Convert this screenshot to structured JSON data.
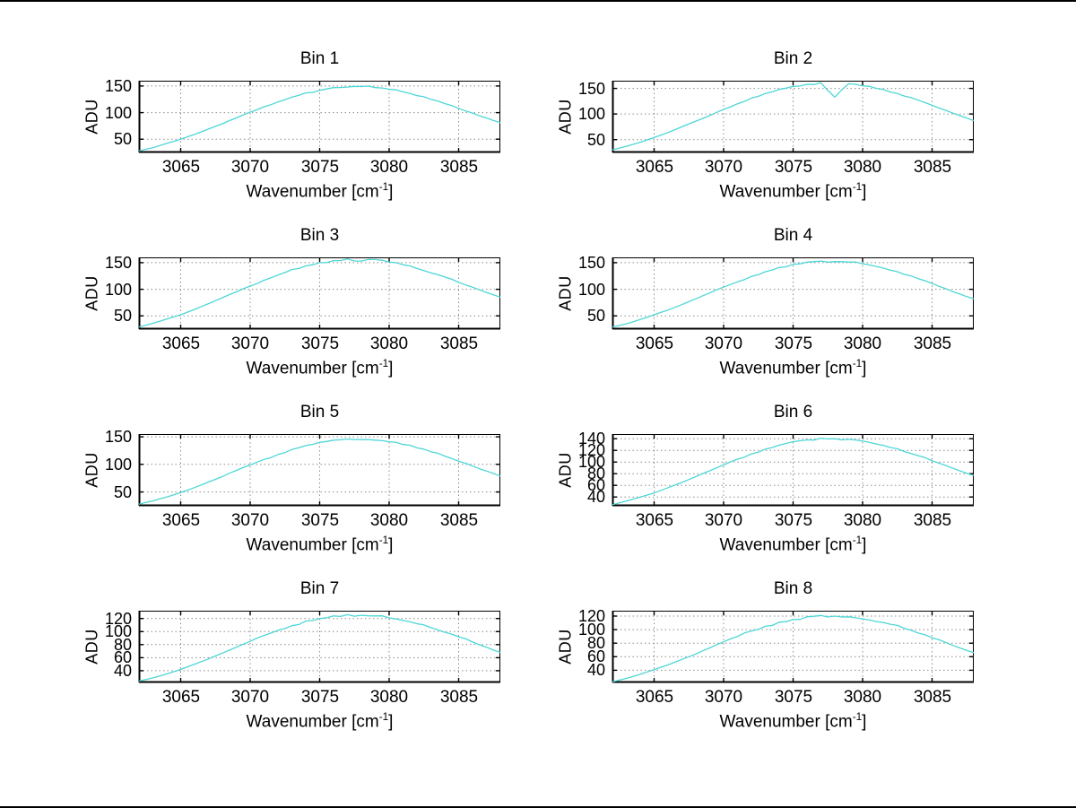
{
  "figure": {
    "background": "#ffffff",
    "border_color": "#000000"
  },
  "labels": {
    "ylabel": "ADU",
    "xlabel_pre": "Wavenumber [cm",
    "xlabel_sup": "-1",
    "xlabel_post": "]"
  },
  "colors": {
    "line": "#4ed6d6",
    "grid": "#8c8c8c",
    "axis": "#000000",
    "text": "#000000"
  },
  "axis": {
    "x_range": [
      3062,
      3088
    ],
    "x_ticks": [
      3065,
      3070,
      3075,
      3080,
      3085
    ],
    "x": [
      3062,
      3063,
      3064,
      3065,
      3066,
      3067,
      3068,
      3069,
      3070,
      3071,
      3072,
      3073,
      3074,
      3075,
      3076,
      3077,
      3078,
      3079,
      3080,
      3081,
      3082,
      3083,
      3084,
      3085,
      3086,
      3087,
      3088
    ],
    "grid": "on",
    "grid_style": "dotted"
  },
  "chart_data": [
    {
      "type": "line",
      "title": "Bin 1",
      "xlabel": "Wavenumber [cm^-1]",
      "ylabel": "ADU",
      "y_ticks": [
        50,
        100,
        150
      ],
      "y_range": [
        25,
        160
      ],
      "values": [
        28,
        34,
        42,
        50,
        59,
        69,
        79,
        90,
        101,
        111,
        120,
        129,
        137,
        142,
        147,
        148,
        149,
        147,
        144,
        139,
        132,
        125,
        117,
        108,
        99,
        90,
        81
      ]
    },
    {
      "type": "line",
      "title": "Bin 2",
      "xlabel": "Wavenumber [cm^-1]",
      "ylabel": "ADU",
      "y_ticks": [
        50,
        100,
        150
      ],
      "y_range": [
        25,
        165
      ],
      "values": [
        30,
        37,
        45,
        54,
        64,
        75,
        86,
        97,
        109,
        120,
        131,
        140,
        148,
        154,
        158,
        161,
        133,
        159,
        155,
        150,
        143,
        135,
        127,
        117,
        107,
        97,
        87
      ]
    },
    {
      "type": "line",
      "title": "Bin 3",
      "xlabel": "Wavenumber [cm^-1]",
      "ylabel": "ADU",
      "y_ticks": [
        50,
        100,
        150
      ],
      "y_range": [
        25,
        160
      ],
      "values": [
        29,
        36,
        44,
        52,
        62,
        73,
        84,
        95,
        106,
        117,
        127,
        137,
        144,
        150,
        154,
        157,
        153,
        156,
        151,
        146,
        139,
        131,
        123,
        113,
        104,
        94,
        85
      ]
    },
    {
      "type": "line",
      "title": "Bin 4",
      "xlabel": "Wavenumber [cm^-1]",
      "ylabel": "ADU",
      "y_ticks": [
        50,
        100,
        150
      ],
      "y_range": [
        25,
        160
      ],
      "values": [
        29,
        35,
        43,
        52,
        61,
        71,
        82,
        93,
        104,
        114,
        124,
        133,
        141,
        147,
        151,
        153,
        152,
        151,
        148,
        143,
        136,
        128,
        120,
        111,
        101,
        91,
        82
      ]
    },
    {
      "type": "line",
      "title": "Bin 5",
      "xlabel": "Wavenumber [cm^-1]",
      "ylabel": "ADU",
      "y_ticks": [
        50,
        100,
        150
      ],
      "y_range": [
        25,
        155
      ],
      "values": [
        28,
        34,
        41,
        49,
        58,
        68,
        78,
        89,
        99,
        109,
        118,
        127,
        134,
        140,
        144,
        146,
        145,
        144,
        141,
        136,
        130,
        123,
        115,
        106,
        97,
        88,
        79
      ]
    },
    {
      "type": "line",
      "title": "Bin 6",
      "xlabel": "Wavenumber [cm^-1]",
      "ylabel": "ADU",
      "y_ticks": [
        40,
        60,
        80,
        100,
        120,
        140
      ],
      "y_range": [
        25,
        148
      ],
      "values": [
        27,
        33,
        40,
        47,
        56,
        65,
        75,
        85,
        95,
        105,
        114,
        122,
        129,
        135,
        138,
        141,
        140,
        139,
        136,
        131,
        125,
        118,
        111,
        102,
        94,
        85,
        77
      ]
    },
    {
      "type": "line",
      "title": "Bin 7",
      "xlabel": "Wavenumber [cm^-1]",
      "ylabel": "ADU",
      "y_ticks": [
        40,
        60,
        80,
        100,
        120
      ],
      "y_range": [
        22,
        132
      ],
      "values": [
        24,
        29,
        35,
        42,
        50,
        58,
        67,
        76,
        85,
        94,
        102,
        109,
        116,
        120,
        124,
        126,
        125,
        124,
        121,
        117,
        112,
        106,
        99,
        92,
        84,
        76,
        68
      ]
    },
    {
      "type": "line",
      "title": "Bin 8",
      "xlabel": "Wavenumber [cm^-1]",
      "ylabel": "ADU",
      "y_ticks": [
        40,
        60,
        80,
        100,
        120
      ],
      "y_range": [
        22,
        128
      ],
      "values": [
        23,
        28,
        34,
        41,
        48,
        56,
        64,
        73,
        82,
        90,
        98,
        105,
        111,
        115,
        119,
        121,
        120,
        119,
        116,
        112,
        108,
        102,
        95,
        88,
        81,
        73,
        66
      ]
    }
  ]
}
